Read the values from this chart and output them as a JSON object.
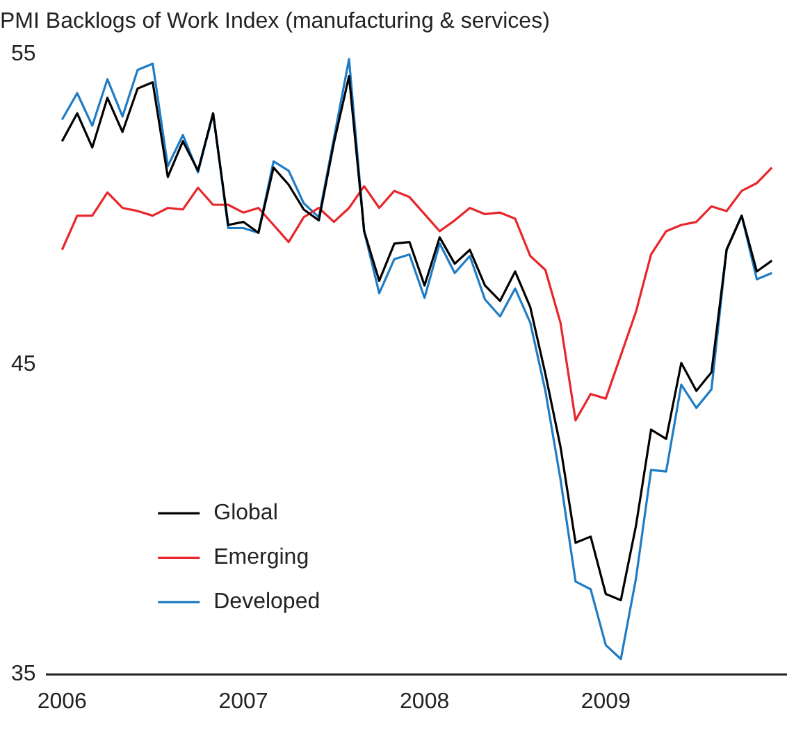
{
  "chart_data": {
    "type": "line",
    "title": "PMI Backlogs of Work Index (manufacturing & services)",
    "x": [
      "2006-01",
      "2006-02",
      "2006-03",
      "2006-04",
      "2006-05",
      "2006-06",
      "2006-07",
      "2006-08",
      "2006-09",
      "2006-10",
      "2006-11",
      "2006-12",
      "2007-01",
      "2007-02",
      "2007-03",
      "2007-04",
      "2007-05",
      "2007-06",
      "2007-07",
      "2007-08",
      "2007-09",
      "2007-10",
      "2007-11",
      "2007-12",
      "2008-01",
      "2008-02",
      "2008-03",
      "2008-04",
      "2008-05",
      "2008-06",
      "2008-07",
      "2008-08",
      "2008-09",
      "2008-10",
      "2008-11",
      "2008-12",
      "2009-01",
      "2009-02",
      "2009-03",
      "2009-04",
      "2009-05",
      "2009-06",
      "2009-07",
      "2009-08",
      "2009-09",
      "2009-10",
      "2009-11",
      "2009-12"
    ],
    "series": [
      {
        "name": "Global",
        "color": "#000000",
        "values": [
          52.2,
          53.1,
          52.0,
          53.6,
          52.5,
          53.9,
          54.1,
          51.05,
          52.2,
          51.25,
          53.1,
          49.5,
          49.6,
          49.25,
          51.35,
          50.8,
          50.0,
          49.65,
          52.15,
          54.3,
          49.3,
          47.7,
          48.9,
          48.95,
          47.55,
          49.1,
          48.25,
          48.7,
          47.55,
          47.05,
          48.0,
          46.85,
          44.7,
          42.35,
          39.25,
          39.45,
          37.6,
          37.4,
          39.8,
          42.9,
          42.6,
          45.05,
          44.15,
          44.75,
          48.7,
          49.8,
          48.0,
          48.35
        ]
      },
      {
        "name": "Emerging",
        "color": "#e8262b",
        "values": [
          48.7,
          49.8,
          49.8,
          50.55,
          50.05,
          49.95,
          49.8,
          50.05,
          50.0,
          50.7,
          50.15,
          50.15,
          49.9,
          50.05,
          49.5,
          48.95,
          49.75,
          50.05,
          49.6,
          50.05,
          50.75,
          50.05,
          50.6,
          50.4,
          49.85,
          49.3,
          49.65,
          50.05,
          49.85,
          49.9,
          49.7,
          48.5,
          48.05,
          46.35,
          43.2,
          44.05,
          43.9,
          45.3,
          46.7,
          48.55,
          49.3,
          49.5,
          49.6,
          50.1,
          49.95,
          50.6,
          50.85,
          51.35
        ]
      },
      {
        "name": "Developed",
        "color": "#1f7cc4",
        "values": [
          52.9,
          53.75,
          52.7,
          54.2,
          53.0,
          54.5,
          54.7,
          51.4,
          52.4,
          51.2,
          53.1,
          49.4,
          49.4,
          49.25,
          51.55,
          51.25,
          50.2,
          49.75,
          52.3,
          54.85,
          49.3,
          47.3,
          48.4,
          48.55,
          47.15,
          48.9,
          47.95,
          48.5,
          47.1,
          46.55,
          47.45,
          46.35,
          44.15,
          41.3,
          38.0,
          37.75,
          35.95,
          35.5,
          38.1,
          41.6,
          41.55,
          44.35,
          43.6,
          44.2,
          48.7,
          49.8,
          47.75,
          47.95
        ]
      }
    ],
    "xlim": [
      "2005-12",
      "2010-01"
    ],
    "xticks": [
      "2006",
      "2007",
      "2008",
      "2009"
    ],
    "ylim": [
      35,
      55
    ],
    "yticks": [
      35,
      45,
      55
    ],
    "grid": false,
    "legend": "bottom left"
  }
}
